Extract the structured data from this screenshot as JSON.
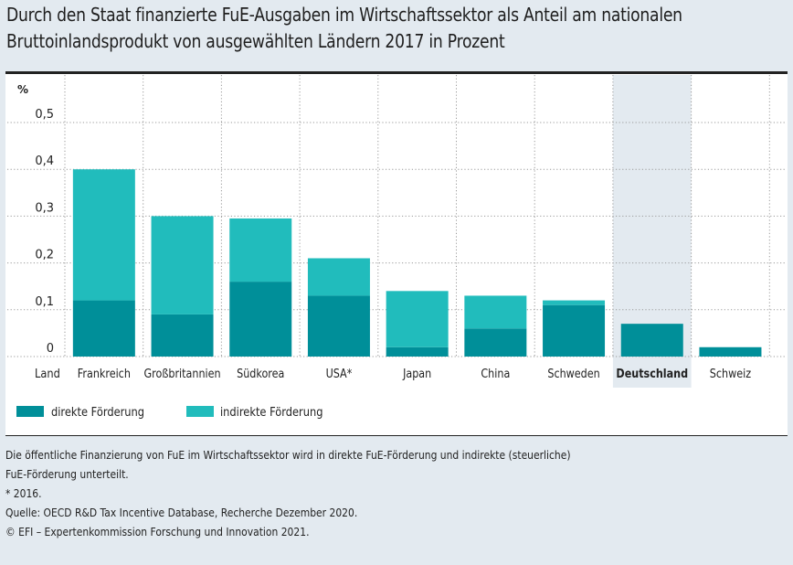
{
  "title": {
    "line1": "Durch den Staat finanzierte FuE-Ausgaben im Wirtschaftssektor als Anteil am nationalen",
    "line2": "Bruttoinlandsprodukt von ausgewählten Ländern 2017 in Prozent"
  },
  "colors": {
    "direct": "#008f99",
    "indirect": "#21bcbc",
    "highlight": "#e3eaf0",
    "grid": "#9a9a9a"
  },
  "chart_data": {
    "type": "bar",
    "stacked": true,
    "title": "Durch den Staat finanzierte FuE-Ausgaben im Wirtschaftssektor als Anteil am nationalen Bruttoinlandsprodukt von ausgewählten Ländern 2017 in Prozent",
    "xlabel": "Land",
    "ylabel": "%",
    "ylim": [
      0,
      0.5
    ],
    "yticks": [
      0,
      0.1,
      0.2,
      0.3,
      0.4,
      0.5
    ],
    "ytick_labels": [
      "0",
      "0,1",
      "0,2",
      "0,3",
      "0,4",
      "0,5"
    ],
    "grid": true,
    "categories": [
      "Frankreich",
      "Großbritannien",
      "Südkorea",
      "USA*",
      "Japan",
      "China",
      "Schweden",
      "Deutschland",
      "Schweiz"
    ],
    "highlighted_category": "Deutschland",
    "series": [
      {
        "name": "direkte Förderung",
        "values": [
          0.12,
          0.09,
          0.16,
          0.13,
          0.02,
          0.06,
          0.11,
          0.07,
          0.02
        ]
      },
      {
        "name": "indirekte Förderung",
        "values": [
          0.28,
          0.21,
          0.135,
          0.08,
          0.12,
          0.07,
          0.01,
          0.0,
          0.0
        ]
      }
    ],
    "legend": [
      "direkte Förderung",
      "indirekte Förderung"
    ],
    "legend_position": "bottom-left"
  },
  "footer": {
    "note_line1": "Die öffentliche Finanzierung von FuE im Wirtschaftssektor wird in direkte FuE-Förderung und indirekte (steuerliche)",
    "note_line2": "FuE-Förderung unterteilt.",
    "asterisk": "* 2016.",
    "source": "Quelle: OECD R&D Tax Incentive Database, Recherche Dezember 2020.",
    "copyright": "© EFI – Expertenkommission Forschung und Innovation 2021."
  }
}
